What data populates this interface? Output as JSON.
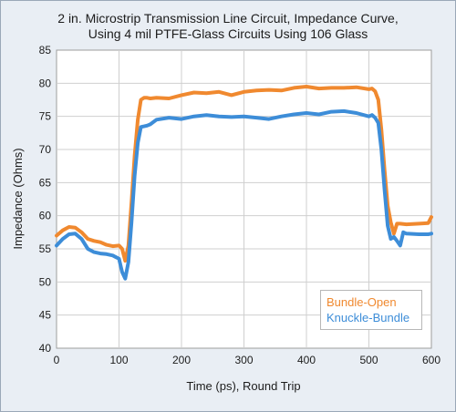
{
  "chart_data": {
    "type": "line",
    "title_lines": [
      "2 in. Microstrip Transmission Line Circuit, Impedance Curve,",
      "Using 4 mil PTFE-Glass Circuits Using 106 Glass"
    ],
    "xlabel": "Time (ps), Round Trip",
    "ylabel": "Impedance (Ohms)",
    "xlim": [
      0,
      600
    ],
    "ylim": [
      40,
      85
    ],
    "xticks": [
      0,
      100,
      200,
      300,
      400,
      500,
      600
    ],
    "yticks": [
      40,
      45,
      50,
      55,
      60,
      65,
      70,
      75,
      80,
      85
    ],
    "grid": true,
    "legend_position": "bottom-right",
    "series": [
      {
        "name": "Bundle-Open",
        "color": "#f0892f",
        "x": [
          0,
          10,
          20,
          30,
          40,
          50,
          60,
          70,
          80,
          90,
          100,
          105,
          110,
          115,
          120,
          125,
          130,
          135,
          140,
          145,
          150,
          160,
          180,
          200,
          220,
          240,
          260,
          280,
          300,
          320,
          340,
          360,
          380,
          400,
          420,
          440,
          460,
          480,
          500,
          505,
          510,
          515,
          520,
          525,
          530,
          535,
          540,
          545,
          550,
          560,
          580,
          595,
          600
        ],
        "y": [
          57,
          57.8,
          58.3,
          58.2,
          57.5,
          56.5,
          56.2,
          56,
          55.6,
          55.4,
          55.5,
          55,
          53.2,
          55.5,
          62,
          69,
          74.5,
          77.5,
          77.8,
          77.8,
          77.7,
          77.8,
          77.7,
          78.2,
          78.6,
          78.5,
          78.7,
          78.2,
          78.7,
          78.9,
          79,
          78.9,
          79.3,
          79.5,
          79.2,
          79.3,
          79.3,
          79.4,
          79.1,
          79.2,
          78.8,
          77.5,
          73,
          67,
          61.5,
          59,
          57.3,
          58.8,
          58.8,
          58.7,
          58.8,
          58.9,
          59.8
        ]
      },
      {
        "name": "Knuckle-Bundle",
        "color": "#3d8dd8",
        "x": [
          0,
          10,
          20,
          30,
          40,
          50,
          60,
          70,
          80,
          90,
          100,
          105,
          110,
          115,
          120,
          125,
          130,
          135,
          140,
          145,
          150,
          160,
          180,
          200,
          220,
          240,
          260,
          280,
          300,
          320,
          340,
          360,
          380,
          400,
          420,
          440,
          460,
          480,
          500,
          505,
          510,
          515,
          520,
          525,
          530,
          535,
          540,
          545,
          550,
          555,
          560,
          580,
          595,
          600
        ],
        "y": [
          55.5,
          56.5,
          57.2,
          57.3,
          56.5,
          55,
          54.5,
          54.3,
          54.2,
          54,
          53.5,
          51.5,
          50.5,
          53,
          59,
          66,
          71,
          73.4,
          73.5,
          73.6,
          73.8,
          74.5,
          74.8,
          74.6,
          75,
          75.2,
          75,
          74.9,
          75,
          74.8,
          74.6,
          75,
          75.3,
          75.5,
          75.3,
          75.7,
          75.8,
          75.5,
          75,
          75.2,
          74.8,
          74,
          70,
          64,
          58.5,
          56.5,
          56.8,
          56.2,
          55.5,
          57.5,
          57.3,
          57.2,
          57.2,
          57.3
        ]
      }
    ]
  }
}
